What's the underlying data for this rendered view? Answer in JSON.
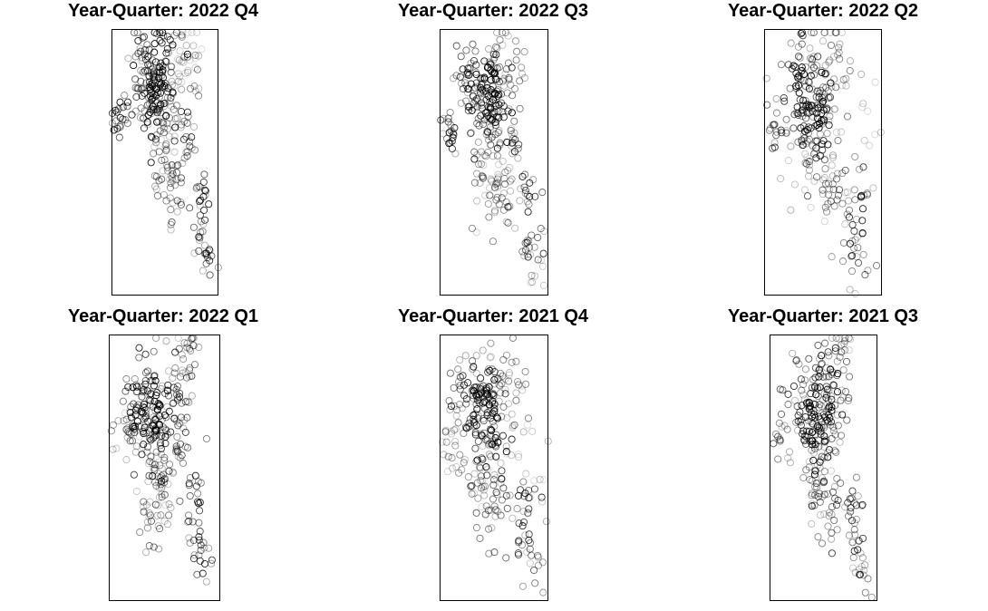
{
  "chart_data": [
    {
      "type": "scatter",
      "title": "Year-Quarter: 2022 Q4",
      "xlabel": "",
      "ylabel": "",
      "axes": false,
      "grid": false,
      "legend": false,
      "marker": "open-circle",
      "clusters": [
        {
          "cx": 0.43,
          "cy": 0.22,
          "n": 120,
          "s": 0.09,
          "w": 1.0
        },
        {
          "cx": 0.3,
          "cy": 0.18,
          "n": 40,
          "s": 0.08,
          "w": 0.8
        },
        {
          "cx": 0.65,
          "cy": 0.15,
          "n": 35,
          "s": 0.09,
          "w": 0.5
        },
        {
          "cx": 0.08,
          "cy": 0.34,
          "n": 20,
          "s": 0.04,
          "w": 0.9
        },
        {
          "cx": 0.5,
          "cy": 0.45,
          "n": 40,
          "s": 0.09,
          "w": 0.5
        },
        {
          "cx": 0.7,
          "cy": 0.4,
          "n": 15,
          "s": 0.04,
          "w": 0.8
        },
        {
          "cx": 0.55,
          "cy": 0.58,
          "n": 30,
          "s": 0.08,
          "w": 0.6
        },
        {
          "cx": 0.85,
          "cy": 0.62,
          "n": 15,
          "s": 0.04,
          "w": 0.8
        },
        {
          "cx": 0.83,
          "cy": 0.75,
          "n": 15,
          "s": 0.05,
          "w": 0.8
        },
        {
          "cx": 0.9,
          "cy": 0.87,
          "n": 14,
          "s": 0.04,
          "w": 0.9
        },
        {
          "cx": 0.7,
          "cy": 0.05,
          "n": 15,
          "s": 0.06,
          "w": 0.3
        }
      ]
    },
    {
      "type": "scatter",
      "title": "Year-Quarter: 2022 Q3",
      "xlabel": "",
      "ylabel": "",
      "axes": false,
      "grid": false,
      "legend": false,
      "marker": "open-circle",
      "clusters": [
        {
          "cx": 0.45,
          "cy": 0.27,
          "n": 120,
          "s": 0.09,
          "w": 1.0
        },
        {
          "cx": 0.25,
          "cy": 0.2,
          "n": 35,
          "s": 0.08,
          "w": 0.8
        },
        {
          "cx": 0.6,
          "cy": 0.15,
          "n": 35,
          "s": 0.1,
          "w": 0.5
        },
        {
          "cx": 0.1,
          "cy": 0.37,
          "n": 18,
          "s": 0.04,
          "w": 0.9
        },
        {
          "cx": 0.45,
          "cy": 0.48,
          "n": 45,
          "s": 0.1,
          "w": 0.5
        },
        {
          "cx": 0.68,
          "cy": 0.44,
          "n": 12,
          "s": 0.03,
          "w": 0.8
        },
        {
          "cx": 0.55,
          "cy": 0.62,
          "n": 30,
          "s": 0.07,
          "w": 0.6
        },
        {
          "cx": 0.82,
          "cy": 0.62,
          "n": 14,
          "s": 0.04,
          "w": 0.8
        },
        {
          "cx": 0.82,
          "cy": 0.78,
          "n": 14,
          "s": 0.05,
          "w": 0.8
        },
        {
          "cx": 0.9,
          "cy": 0.88,
          "n": 12,
          "s": 0.06,
          "w": 0.5
        }
      ]
    },
    {
      "type": "scatter",
      "title": "Year-Quarter: 2022 Q2",
      "xlabel": "",
      "ylabel": "",
      "axes": false,
      "grid": false,
      "legend": false,
      "marker": "open-circle",
      "clusters": [
        {
          "cx": 0.4,
          "cy": 0.27,
          "n": 110,
          "s": 0.09,
          "w": 1.0
        },
        {
          "cx": 0.3,
          "cy": 0.18,
          "n": 30,
          "s": 0.08,
          "w": 0.8
        },
        {
          "cx": 0.6,
          "cy": 0.14,
          "n": 35,
          "s": 0.1,
          "w": 0.5
        },
        {
          "cx": 0.1,
          "cy": 0.38,
          "n": 18,
          "s": 0.05,
          "w": 0.8
        },
        {
          "cx": 0.4,
          "cy": 0.52,
          "n": 40,
          "s": 0.09,
          "w": 0.5
        },
        {
          "cx": 0.6,
          "cy": 0.6,
          "n": 30,
          "s": 0.08,
          "w": 0.6
        },
        {
          "cx": 0.8,
          "cy": 0.62,
          "n": 12,
          "s": 0.04,
          "w": 0.8
        },
        {
          "cx": 0.75,
          "cy": 0.76,
          "n": 14,
          "s": 0.05,
          "w": 0.8
        },
        {
          "cx": 0.8,
          "cy": 0.88,
          "n": 12,
          "s": 0.06,
          "w": 0.6
        },
        {
          "cx": 0.85,
          "cy": 0.35,
          "n": 10,
          "s": 0.1,
          "w": 0.3
        }
      ]
    },
    {
      "type": "scatter",
      "title": "Year-Quarter: 2022 Q1",
      "xlabel": "",
      "ylabel": "",
      "axes": false,
      "grid": false,
      "legend": false,
      "marker": "open-circle",
      "clusters": [
        {
          "cx": 0.4,
          "cy": 0.29,
          "n": 120,
          "s": 0.09,
          "w": 1.0
        },
        {
          "cx": 0.25,
          "cy": 0.22,
          "n": 30,
          "s": 0.08,
          "w": 0.8
        },
        {
          "cx": 0.65,
          "cy": 0.18,
          "n": 40,
          "s": 0.1,
          "w": 0.6
        },
        {
          "cx": 0.15,
          "cy": 0.38,
          "n": 20,
          "s": 0.07,
          "w": 0.5
        },
        {
          "cx": 0.45,
          "cy": 0.5,
          "n": 40,
          "s": 0.09,
          "w": 0.5
        },
        {
          "cx": 0.65,
          "cy": 0.44,
          "n": 12,
          "s": 0.03,
          "w": 0.8
        },
        {
          "cx": 0.4,
          "cy": 0.62,
          "n": 35,
          "s": 0.08,
          "w": 0.6
        },
        {
          "cx": 0.75,
          "cy": 0.62,
          "n": 14,
          "s": 0.04,
          "w": 0.8
        },
        {
          "cx": 0.78,
          "cy": 0.75,
          "n": 14,
          "s": 0.05,
          "w": 0.8
        },
        {
          "cx": 0.85,
          "cy": 0.86,
          "n": 12,
          "s": 0.04,
          "w": 0.8
        },
        {
          "cx": 0.72,
          "cy": 0.03,
          "n": 8,
          "s": 0.03,
          "w": 0.6
        }
      ]
    },
    {
      "type": "scatter",
      "title": "Year-Quarter: 2021 Q4",
      "xlabel": "",
      "ylabel": "",
      "axes": false,
      "grid": false,
      "legend": false,
      "marker": "open-circle",
      "clusters": [
        {
          "cx": 0.4,
          "cy": 0.29,
          "n": 110,
          "s": 0.09,
          "w": 1.0
        },
        {
          "cx": 0.2,
          "cy": 0.24,
          "n": 30,
          "s": 0.08,
          "w": 0.8
        },
        {
          "cx": 0.6,
          "cy": 0.16,
          "n": 40,
          "s": 0.1,
          "w": 0.5
        },
        {
          "cx": 0.1,
          "cy": 0.38,
          "n": 20,
          "s": 0.06,
          "w": 0.5
        },
        {
          "cx": 0.4,
          "cy": 0.52,
          "n": 35,
          "s": 0.09,
          "w": 0.5
        },
        {
          "cx": 0.5,
          "cy": 0.62,
          "n": 35,
          "s": 0.08,
          "w": 0.7
        },
        {
          "cx": 0.78,
          "cy": 0.62,
          "n": 14,
          "s": 0.04,
          "w": 0.8
        },
        {
          "cx": 0.78,
          "cy": 0.76,
          "n": 14,
          "s": 0.05,
          "w": 0.8
        },
        {
          "cx": 0.85,
          "cy": 0.87,
          "n": 12,
          "s": 0.05,
          "w": 0.6
        },
        {
          "cx": 0.85,
          "cy": 0.4,
          "n": 12,
          "s": 0.1,
          "w": 0.3
        }
      ]
    },
    {
      "type": "scatter",
      "title": "Year-Quarter: 2021 Q3",
      "xlabel": "",
      "ylabel": "",
      "axes": false,
      "grid": false,
      "legend": false,
      "marker": "open-circle",
      "clusters": [
        {
          "cx": 0.45,
          "cy": 0.29,
          "n": 110,
          "s": 0.09,
          "w": 1.0
        },
        {
          "cx": 0.3,
          "cy": 0.22,
          "n": 30,
          "s": 0.08,
          "w": 0.8
        },
        {
          "cx": 0.6,
          "cy": 0.15,
          "n": 40,
          "s": 0.1,
          "w": 0.6
        },
        {
          "cx": 0.1,
          "cy": 0.37,
          "n": 15,
          "s": 0.05,
          "w": 0.6
        },
        {
          "cx": 0.45,
          "cy": 0.5,
          "n": 40,
          "s": 0.09,
          "w": 0.5
        },
        {
          "cx": 0.55,
          "cy": 0.62,
          "n": 35,
          "s": 0.08,
          "w": 0.7
        },
        {
          "cx": 0.78,
          "cy": 0.62,
          "n": 14,
          "s": 0.04,
          "w": 0.8
        },
        {
          "cx": 0.8,
          "cy": 0.78,
          "n": 14,
          "s": 0.05,
          "w": 0.8
        },
        {
          "cx": 0.85,
          "cy": 0.88,
          "n": 12,
          "s": 0.05,
          "w": 0.6
        },
        {
          "cx": 0.7,
          "cy": 0.03,
          "n": 8,
          "s": 0.04,
          "w": 0.5
        }
      ]
    }
  ]
}
